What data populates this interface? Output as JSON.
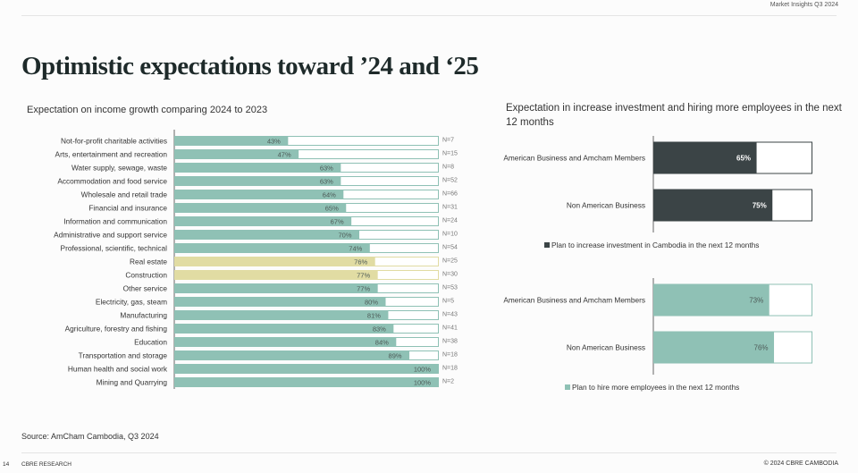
{
  "header": {
    "report_label": "Market Insights Q3 2024"
  },
  "page_title": "Optimistic expectations toward ’24 and ‘25",
  "colors": {
    "teal": "#8fc1b5",
    "sand": "#e1dca3",
    "dark": "#3b4446",
    "outline": "#8fc1b5",
    "dark_outline": "#3b4446"
  },
  "chart_data": [
    {
      "type": "bar",
      "orientation": "horizontal",
      "stacked_100": true,
      "title": "Expectation on income growth comparing 2024 to 2023",
      "xlim": [
        0,
        100
      ],
      "unit": "%",
      "categories": [
        "Not-for-profit charitable activities",
        "Arts, entertainment and recreation",
        "Water supply, sewage, waste",
        "Accommodation and food service",
        "Wholesale and retail trade",
        "Financial and insurance",
        "Information and communication",
        "Administrative and support service",
        "Professional, scientific, technical",
        "Real estate",
        "Construction",
        "Other service",
        "Electricity, gas, steam",
        "Manufacturing",
        "Agriculture, forestry and fishing",
        "Education",
        "Transportation and storage",
        "Human health and social work",
        "Mining and Quarrying"
      ],
      "values": [
        43,
        47,
        63,
        63,
        64,
        65,
        67,
        70,
        74,
        76,
        77,
        77,
        80,
        81,
        83,
        84,
        89,
        100,
        100
      ],
      "sample_sizes": [
        "N=7",
        "N=15",
        "N=8",
        "N=52",
        "N=66",
        "N=31",
        "N=24",
        "N=10",
        "N=54",
        "N=25",
        "N=30",
        "N=53",
        "N=5",
        "N=43",
        "N=41",
        "N=38",
        "N=18",
        "N=18",
        "N=2"
      ],
      "highlighted": [
        "Real estate",
        "Construction"
      ]
    },
    {
      "type": "bar",
      "orientation": "horizontal",
      "title": "Expectation in increase investment and hiring more employees in the next 12 months",
      "xlim": [
        0,
        100
      ],
      "unit": "%",
      "groups": [
        {
          "legend": "Plan to increase investment in Cambodia in the next 12 months",
          "color": "dark",
          "categories": [
            "American Business and Amcham Members",
            "Non American Business"
          ],
          "values": [
            65,
            75
          ]
        },
        {
          "legend": "Plan to hire more employees in the next 12 months",
          "color": "teal",
          "categories": [
            "American Business and Amcham Members",
            "Non American Business"
          ],
          "values": [
            73,
            76
          ]
        }
      ]
    }
  ],
  "footer": {
    "source": "Source: AmCham Cambodia, Q3 2024",
    "page_number": "14",
    "left": "CBRE RESEARCH",
    "right": "© 2024 CBRE CAMBODIA"
  }
}
